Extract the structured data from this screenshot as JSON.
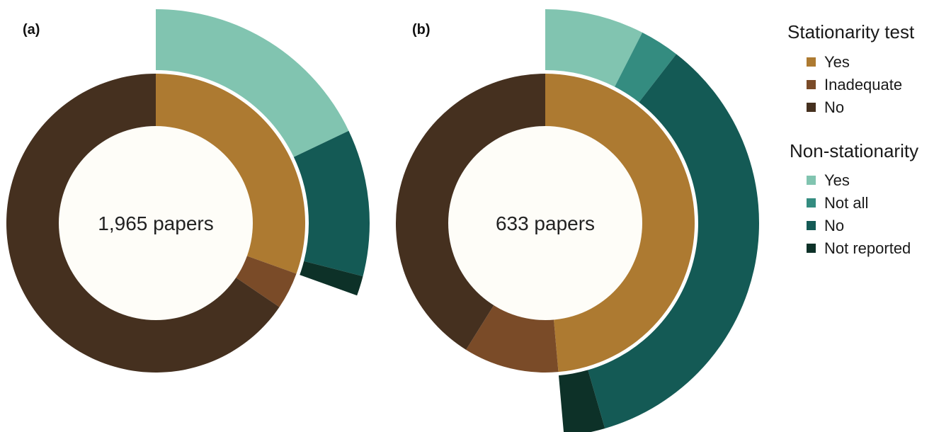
{
  "legend": {
    "stationarity": {
      "title": "Stationarity test",
      "items": [
        {
          "label": "Yes",
          "color": "#AD7A31"
        },
        {
          "label": "Inadequate",
          "color": "#7A4B28"
        },
        {
          "label": "No",
          "color": "#45301F"
        }
      ]
    },
    "nonstationarity": {
      "title": "Non-stationarity",
      "items": [
        {
          "label": "Yes",
          "color": "#81C4B0"
        },
        {
          "label": "Not all",
          "color": "#348C80"
        },
        {
          "label": "No",
          "color": "#145A55"
        },
        {
          "label": "Not reported",
          "color": "#0D3128"
        }
      ]
    }
  },
  "chart_data": [
    {
      "type": "pie",
      "panel_label": "(a)",
      "center_label": "1,965 papers",
      "inner_ring": {
        "categories": [
          "Yes",
          "Inadequate",
          "No"
        ],
        "values": [
          30.5,
          4.0,
          65.5
        ]
      },
      "outer_ring": {
        "categories": [
          "Yes",
          "Not all",
          "No",
          "Not reported"
        ],
        "values": [
          17.9,
          0.0,
          11.1,
          1.5
        ]
      }
    },
    {
      "type": "pie",
      "panel_label": "(b)",
      "center_label": "633 papers",
      "inner_ring": {
        "categories": [
          "Yes",
          "Inadequate",
          "No"
        ],
        "values": [
          48.6,
          10.3,
          41.1
        ]
      },
      "outer_ring": {
        "categories": [
          "Yes",
          "Not all",
          "No",
          "Not reported"
        ],
        "values": [
          7.5,
          3.0,
          35.0,
          3.1
        ]
      }
    }
  ]
}
